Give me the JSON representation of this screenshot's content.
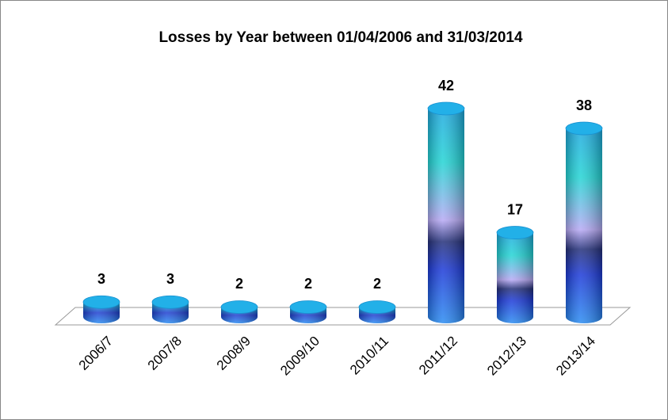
{
  "chart_data": {
    "type": "bar",
    "title": "Losses by Year between 01/04/2006  and 31/03/2014",
    "categories": [
      "2006/7",
      "2007/8",
      "2008/9",
      "2009/10",
      "2010/11",
      "2011/12",
      "2012/13",
      "2013/14"
    ],
    "values": [
      3,
      3,
      2,
      2,
      2,
      42,
      17,
      38
    ]
  }
}
